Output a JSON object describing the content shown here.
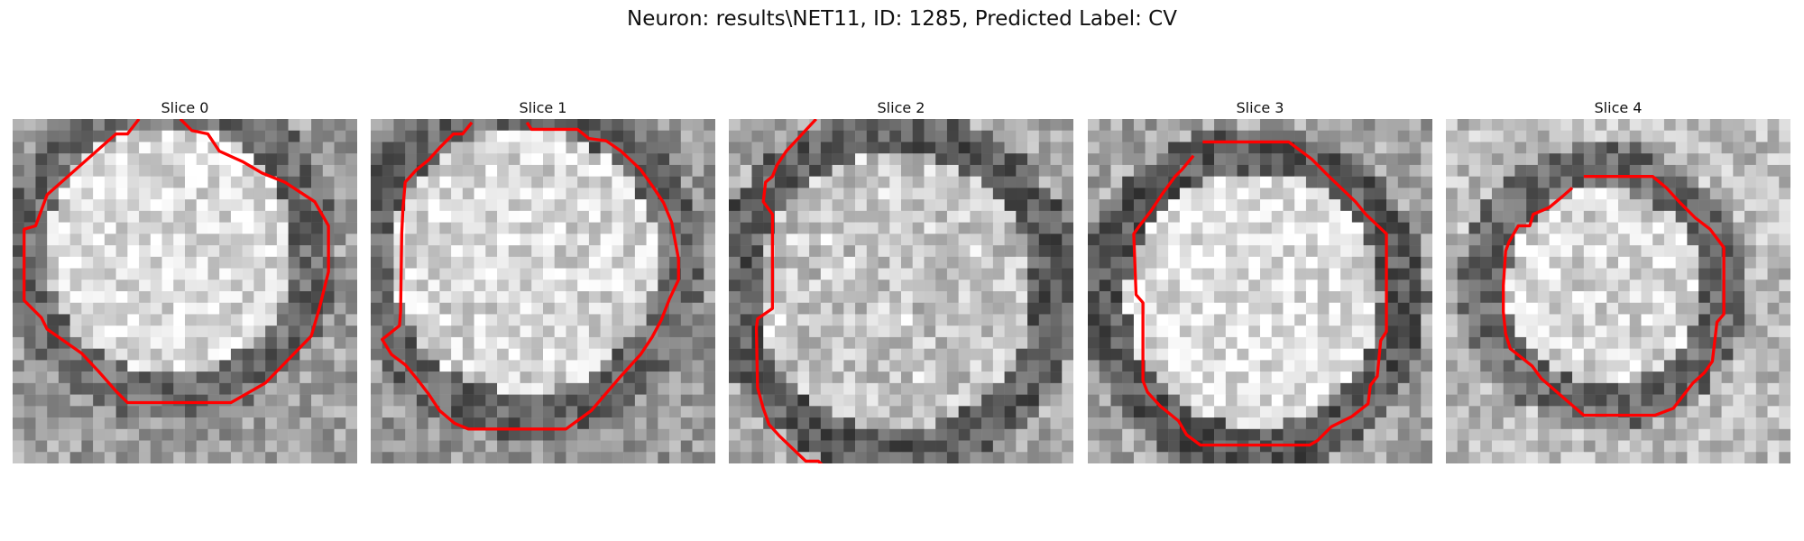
{
  "title": "Neuron: results\\NET11, ID: 1285, Predicted Label: CV",
  "colors": {
    "contour": "#ff0000",
    "background": "#ffffff",
    "image_cmap": "grayscale"
  },
  "slices": [
    {
      "label": "Slice 0",
      "brightness": {
        "center": 0.86,
        "ring": 0.42,
        "outside": 0.62
      },
      "contour": [
        [
          11,
          0
        ],
        [
          10,
          1.3
        ],
        [
          9,
          1.3
        ],
        [
          3,
          6.6
        ],
        [
          2,
          9.3
        ],
        [
          1,
          9.6
        ],
        [
          1,
          15.8
        ],
        [
          1.5,
          16.3
        ],
        [
          2.5,
          17.3
        ],
        [
          3,
          18.3
        ],
        [
          6,
          20.4
        ],
        [
          7.5,
          22
        ],
        [
          9,
          23.7
        ],
        [
          10,
          24.7
        ],
        [
          19,
          24.7
        ],
        [
          22,
          23
        ],
        [
          26,
          18.9
        ],
        [
          26.7,
          16.5
        ],
        [
          27.5,
          13.3
        ],
        [
          27.5,
          9.3
        ],
        [
          26.3,
          7.2
        ],
        [
          23.7,
          5.5
        ],
        [
          21.7,
          4.7
        ],
        [
          20,
          3.7
        ],
        [
          18,
          2.8
        ],
        [
          17,
          1.3
        ],
        [
          15.6,
          1
        ],
        [
          14.6,
          0
        ]
      ]
    },
    {
      "label": "Slice 1",
      "brightness": {
        "center": 0.84,
        "ring": 0.4,
        "outside": 0.6
      },
      "contour": [
        [
          8.8,
          0.3
        ],
        [
          8,
          1.3
        ],
        [
          7.2,
          1.3
        ],
        [
          6,
          2.5
        ],
        [
          5,
          3.6
        ],
        [
          4,
          4.4
        ],
        [
          3,
          5.5
        ],
        [
          2.8,
          7.9
        ],
        [
          2.7,
          10
        ],
        [
          2.6,
          16.8
        ],
        [
          2.5,
          18
        ],
        [
          1,
          19.2
        ],
        [
          1.8,
          20.5
        ],
        [
          3,
          21.4
        ],
        [
          4,
          22.6
        ],
        [
          5,
          23.9
        ],
        [
          6,
          25.4
        ],
        [
          7.3,
          26.5
        ],
        [
          8.5,
          27
        ],
        [
          17,
          27
        ],
        [
          19.2,
          25.4
        ],
        [
          21.6,
          22.6
        ],
        [
          23.5,
          20.5
        ],
        [
          24.5,
          19
        ],
        [
          25.3,
          17.5
        ],
        [
          26,
          15.7
        ],
        [
          26.8,
          14
        ],
        [
          26.8,
          12.2
        ],
        [
          26.2,
          9
        ],
        [
          25.5,
          7.3
        ],
        [
          24.5,
          5.8
        ],
        [
          23.5,
          4.4
        ],
        [
          21.8,
          2.8
        ],
        [
          20.5,
          1.9
        ],
        [
          19,
          1.7
        ],
        [
          18,
          0.9
        ],
        [
          14,
          0.9
        ],
        [
          13.6,
          0.3
        ]
      ]
    },
    {
      "label": "Slice 2",
      "brightness": {
        "center": 0.76,
        "ring": 0.36,
        "outside": 0.66
      },
      "contour": [
        [
          7.6,
          0
        ],
        [
          5,
          2.8
        ],
        [
          4.2,
          4
        ],
        [
          3.8,
          5
        ],
        [
          3.2,
          5.5
        ],
        [
          3,
          7.2
        ],
        [
          3.8,
          8.3
        ],
        [
          3.8,
          16.5
        ],
        [
          2.5,
          17.4
        ],
        [
          2.4,
          18.2
        ],
        [
          2.5,
          23.4
        ],
        [
          3,
          25.2
        ],
        [
          3.5,
          26.6
        ],
        [
          4.4,
          27.6
        ],
        [
          6.7,
          29.8
        ],
        [
          7.8,
          29.8
        ],
        [
          8.3,
          30.3
        ]
      ]
    },
    {
      "label": "Slice 3",
      "brightness": {
        "center": 0.88,
        "ring": 0.35,
        "outside": 0.65
      },
      "contour": [
        [
          10,
          2
        ],
        [
          17.5,
          2
        ],
        [
          19.5,
          3.5
        ],
        [
          21,
          5
        ],
        [
          23.3,
          7.2
        ],
        [
          24.2,
          8.3
        ],
        [
          26,
          10
        ],
        [
          26,
          18.5
        ],
        [
          25.5,
          19.3
        ],
        [
          25.2,
          22.4
        ],
        [
          24.6,
          23.2
        ],
        [
          24.4,
          24.8
        ],
        [
          23,
          25.9
        ],
        [
          21.2,
          26.8
        ],
        [
          20,
          28
        ],
        [
          19.3,
          28.4
        ],
        [
          9.8,
          28.4
        ],
        [
          8.6,
          27.5
        ],
        [
          7.9,
          26.3
        ],
        [
          6.3,
          25
        ],
        [
          5.2,
          23.8
        ],
        [
          4.8,
          22.8
        ],
        [
          4.8,
          16
        ],
        [
          4.2,
          15.3
        ],
        [
          4,
          10
        ],
        [
          4.5,
          9.3
        ],
        [
          5.5,
          8
        ],
        [
          6.5,
          6.5
        ],
        [
          7.6,
          5
        ],
        [
          8.2,
          4.4
        ],
        [
          9.2,
          3.2
        ]
      ]
    },
    {
      "label": "Slice 4",
      "brightness": {
        "center": 0.84,
        "ring": 0.42,
        "outside": 0.74
      },
      "contour": [
        [
          12,
          5
        ],
        [
          18,
          5
        ],
        [
          19.2,
          6
        ],
        [
          20.3,
          7.2
        ],
        [
          21.7,
          8.6
        ],
        [
          23,
          9.6
        ],
        [
          24.2,
          11.2
        ],
        [
          24.2,
          17
        ],
        [
          23.6,
          17.7
        ],
        [
          23.2,
          21.1
        ],
        [
          22.5,
          22.1
        ],
        [
          21.5,
          23
        ],
        [
          19.8,
          25.2
        ],
        [
          18.2,
          25.8
        ],
        [
          12,
          25.8
        ],
        [
          10.5,
          24.5
        ],
        [
          8.3,
          22.6
        ],
        [
          7.5,
          21.5
        ],
        [
          5.6,
          20
        ],
        [
          5.2,
          18.7
        ],
        [
          5,
          16.8
        ],
        [
          5,
          14.5
        ],
        [
          5.2,
          11.5
        ],
        [
          5.5,
          10.7
        ],
        [
          6.3,
          9.3
        ],
        [
          7.3,
          9.3
        ],
        [
          7.6,
          8.3
        ],
        [
          9,
          7.7
        ],
        [
          10.2,
          6.7
        ],
        [
          11,
          6
        ]
      ]
    }
  ]
}
